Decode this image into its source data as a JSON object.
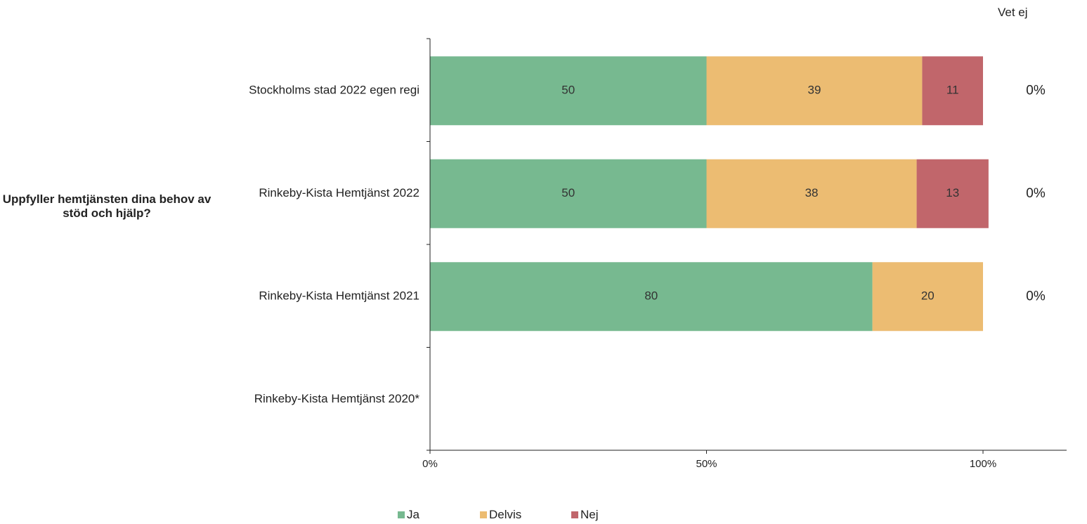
{
  "question": "Uppfyller hemtjänsten dina behov av stöd och hjälp?",
  "vet_ej_header": "Vet ej",
  "colors": {
    "ja": "#77b990",
    "delvis": "#ecbc72",
    "nej": "#c1666b",
    "axis": "#222222"
  },
  "chart_data": {
    "type": "bar",
    "orientation": "horizontal",
    "stacked": true,
    "categories": [
      "Stockholms stad 2022 egen regi",
      "Rinkeby-Kista Hemtjänst 2022",
      "Rinkeby-Kista Hemtjänst 2021",
      "Rinkeby-Kista Hemtjänst 2020*"
    ],
    "series": [
      {
        "name": "Ja",
        "values": [
          50,
          50,
          80,
          null
        ],
        "labels": [
          "50",
          "50",
          "80",
          ""
        ]
      },
      {
        "name": "Delvis",
        "values": [
          39,
          38,
          20,
          null
        ],
        "labels": [
          "39",
          "38",
          "20",
          ""
        ]
      },
      {
        "name": "Nej",
        "values": [
          11,
          13,
          0,
          null
        ],
        "labels": [
          "11",
          "13",
          "",
          ""
        ]
      }
    ],
    "vet_ej_values": [
      "0%",
      "0%",
      "0%",
      ""
    ],
    "xticks": [
      "0%",
      "50%",
      "100%"
    ],
    "xlim": [
      0,
      100
    ],
    "legend_position": "bottom"
  }
}
